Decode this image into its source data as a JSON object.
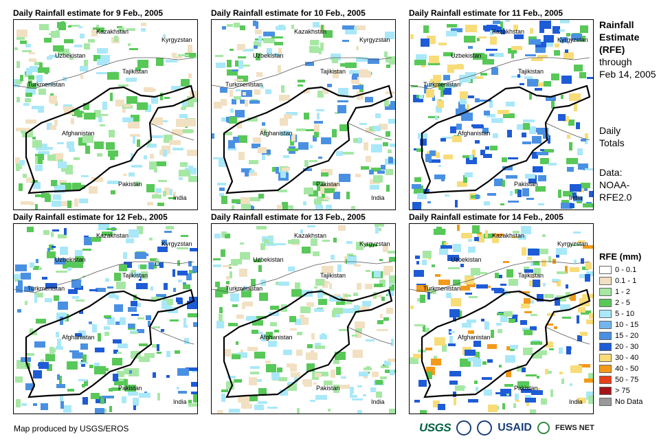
{
  "panels": [
    {
      "title": "Daily Rainfall estimate for 9 Feb., 2005",
      "colors": [
        "#a6e7a4",
        "#58c858",
        "#a9e8f9",
        "#f2e0c2"
      ]
    },
    {
      "title": "Daily Rainfall estimate for 10 Feb., 2005",
      "colors": [
        "#a6e7a4",
        "#58c858",
        "#a9e8f9",
        "#f2e0c2",
        "#4a90e2"
      ]
    },
    {
      "title": "Daily Rainfall estimate for 11 Feb., 2005",
      "colors": [
        "#4a90e2",
        "#1e5bd6",
        "#a9e8f9",
        "#58c858",
        "#f8dc78"
      ]
    },
    {
      "title": "Daily Rainfall estimate for 12 Feb., 2005",
      "colors": [
        "#a6e7a4",
        "#58c858",
        "#a9e8f9",
        "#4a90e2",
        "#1e5bd6"
      ]
    },
    {
      "title": "Daily Rainfall estimate for 13 Feb., 2005",
      "colors": [
        "#a6e7a4",
        "#58c858",
        "#a9e8f9",
        "#f2e0c2"
      ]
    },
    {
      "title": "Daily Rainfall estimate for 14 Feb., 2005",
      "colors": [
        "#a6e7a4",
        "#58c858",
        "#a9e8f9",
        "#1e5bd6",
        "#f8dc78",
        "#f39a1a"
      ]
    }
  ],
  "place_labels": {
    "kazakhstan": "Kazakhstan",
    "kyrgyzstan": "Kyrgyzstan",
    "uzbekistan": "Uzbekistan",
    "tajikistan": "Tajikistan",
    "turkmenistan": "Turkmenistan",
    "afghanistan": "Afghanistan",
    "pakistan": "Pakistan",
    "india": "India"
  },
  "side": {
    "rfe_title_1": "Rainfall",
    "rfe_title_2": "Estimate",
    "rfe_title_3": "(RFE)",
    "through": "through",
    "date": "Feb 14, 2005",
    "daily": "Daily",
    "totals": "Totals",
    "data_label": "Data:",
    "source_1": "NOAA-",
    "source_2": "RFE2.0"
  },
  "legend": {
    "title": "RFE (mm)",
    "items": [
      {
        "label": "0 - 0.1",
        "color": "#ffffff"
      },
      {
        "label": "0.1 - 1",
        "color": "#f2e0c2"
      },
      {
        "label": "1 - 2",
        "color": "#a6e7a4"
      },
      {
        "label": "2 - 5",
        "color": "#58c858"
      },
      {
        "label": "5 - 10",
        "color": "#a9e8f9"
      },
      {
        "label": "10 - 15",
        "color": "#72b6f0"
      },
      {
        "label": "15 - 20",
        "color": "#4a90e2"
      },
      {
        "label": "20 - 30",
        "color": "#1e5bd6"
      },
      {
        "label": "30 - 40",
        "color": "#f8dc78"
      },
      {
        "label": "40 - 50",
        "color": "#f39a1a"
      },
      {
        "label": "50 - 75",
        "color": "#e8401a"
      },
      {
        "label": "> 75",
        "color": "#a3151a"
      },
      {
        "label": "No Data",
        "color": "#9a9a9a"
      }
    ]
  },
  "footer": {
    "credit": "Map produced by USGS/EROS",
    "usgs": "USGS",
    "usaid": "USAID",
    "fews": "FEWS NET"
  }
}
